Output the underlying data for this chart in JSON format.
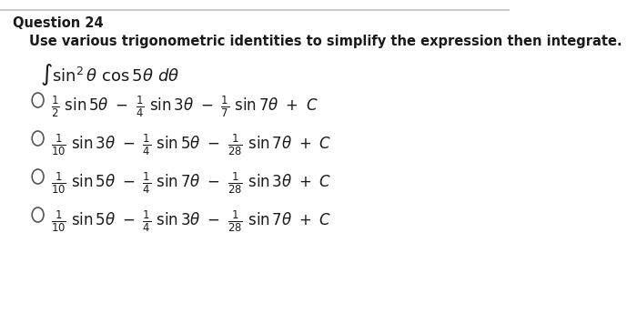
{
  "background_color": "#ffffff",
  "question_number": "Question 24",
  "instruction": "Use various trigonometric identities to simplify the expression then integrate.",
  "integral_expr": "$\\int \\sin^{2}\\theta \\cos 5\\theta \\, d\\theta$",
  "choices": [
    "$\\frac{1}{2}$ sin 5$\\theta$ - $\\frac{1}{4}$ sin 3$\\theta$ - $\\frac{1}{7}$ sin 7$\\theta$ + C",
    "$\\frac{1}{10}$ sin 3$\\theta$ - $\\frac{1}{4}$ sin 5$\\theta$ - $\\frac{1}{28}$ sin 7$\\theta$ + C",
    "$\\frac{1}{10}$ sin 5$\\theta$ - $\\frac{1}{4}$ sin 7$\\theta$ - $\\frac{1}{28}$ sin 3$\\theta$ + C",
    "$\\frac{1}{10}$ sin 5$\\theta$ - $\\frac{1}{4}$ sin 3$\\theta$ - $\\frac{1}{28}$ sin 7$\\theta$ + C"
  ],
  "text_color": "#1a1a1a",
  "font_size_question": 10,
  "font_size_instruction": 10,
  "font_size_choices": 11
}
